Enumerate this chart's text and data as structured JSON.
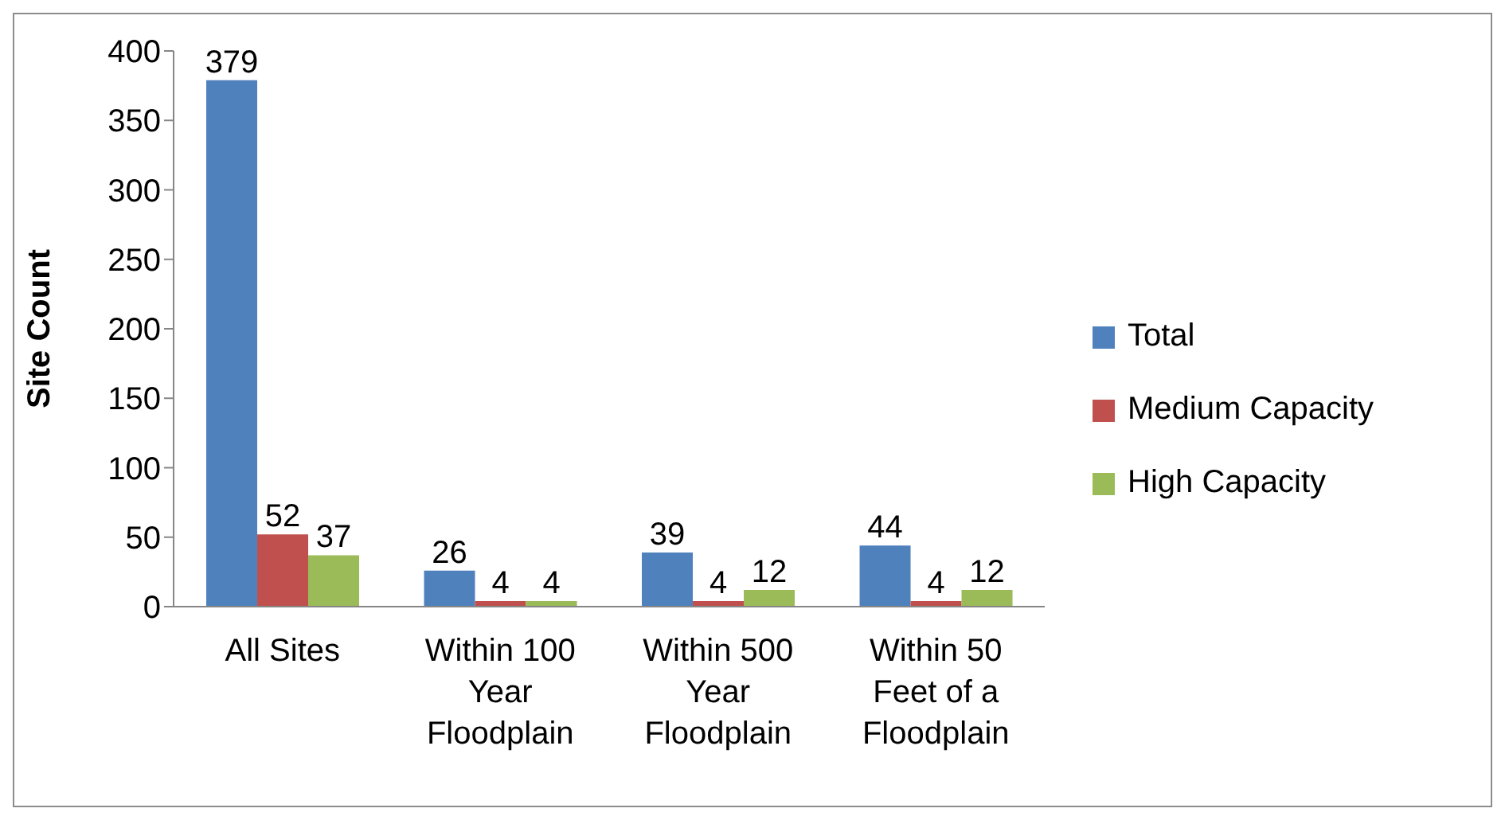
{
  "chart_data": {
    "type": "bar",
    "ylabel": "Site Count",
    "categories": [
      "All Sites",
      "Within 100 Year Floodplain",
      "Within 500 Year Floodplain",
      "Within 50 Feet of a Floodplain"
    ],
    "series": [
      {
        "name": "Total",
        "color": "#4f81bd",
        "values": [
          379,
          26,
          39,
          44
        ]
      },
      {
        "name": "Medium Capacity",
        "color": "#c0504d",
        "values": [
          52,
          4,
          4,
          4
        ]
      },
      {
        "name": "High Capacity",
        "color": "#9bbb59",
        "values": [
          37,
          4,
          12,
          12
        ]
      }
    ],
    "ylim": [
      0,
      400
    ],
    "yticks": [
      0,
      50,
      100,
      150,
      200,
      250,
      300,
      350,
      400
    ],
    "grid": false,
    "legend": "right",
    "data_labels": true
  }
}
